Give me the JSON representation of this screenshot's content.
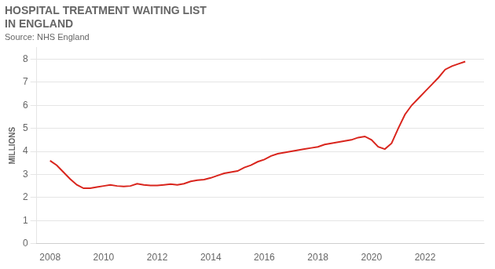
{
  "chart_data": {
    "type": "line",
    "title": [
      "HOSPITAL TREATMENT WAITING LIST",
      "IN ENGLAND"
    ],
    "subtitle": "Source: NHS England",
    "ylabel": "MILLIONS",
    "color": "#d9251d",
    "x": [
      2008.0,
      2008.25,
      2008.5,
      2008.75,
      2009.0,
      2009.25,
      2009.5,
      2009.75,
      2010.0,
      2010.25,
      2010.5,
      2010.75,
      2011.0,
      2011.25,
      2011.5,
      2011.75,
      2012.0,
      2012.25,
      2012.5,
      2012.75,
      2013.0,
      2013.25,
      2013.5,
      2013.75,
      2014.0,
      2014.25,
      2014.5,
      2014.75,
      2015.0,
      2015.25,
      2015.5,
      2015.75,
      2016.0,
      2016.25,
      2016.5,
      2016.75,
      2017.0,
      2017.25,
      2017.5,
      2017.75,
      2018.0,
      2018.25,
      2018.5,
      2018.75,
      2019.0,
      2019.25,
      2019.5,
      2019.75,
      2020.0,
      2020.25,
      2020.5,
      2020.75,
      2021.0,
      2021.25,
      2021.5,
      2021.75,
      2022.0,
      2022.25,
      2022.5,
      2022.75,
      2023.0,
      2023.25,
      2023.5
    ],
    "values": [
      3.6,
      3.4,
      3.1,
      2.8,
      2.55,
      2.4,
      2.4,
      2.45,
      2.5,
      2.55,
      2.5,
      2.48,
      2.5,
      2.6,
      2.55,
      2.52,
      2.52,
      2.55,
      2.58,
      2.55,
      2.6,
      2.7,
      2.75,
      2.78,
      2.85,
      2.95,
      3.05,
      3.1,
      3.15,
      3.3,
      3.4,
      3.55,
      3.65,
      3.8,
      3.9,
      3.95,
      4.0,
      4.05,
      4.1,
      4.15,
      4.2,
      4.3,
      4.35,
      4.4,
      4.45,
      4.5,
      4.6,
      4.65,
      4.5,
      4.2,
      4.1,
      4.35,
      5.0,
      5.6,
      6.0,
      6.3,
      6.6,
      6.9,
      7.2,
      7.55,
      7.7,
      7.8,
      7.9
    ],
    "xlim": [
      2007.5,
      2024.2
    ],
    "xticks": [
      2008,
      2010,
      2012,
      2014,
      2016,
      2018,
      2020,
      2022
    ],
    "ylim": [
      0,
      8.5
    ],
    "yticks": [
      0,
      1,
      2,
      3,
      4,
      5,
      6,
      7,
      8
    ],
    "grid": true
  }
}
